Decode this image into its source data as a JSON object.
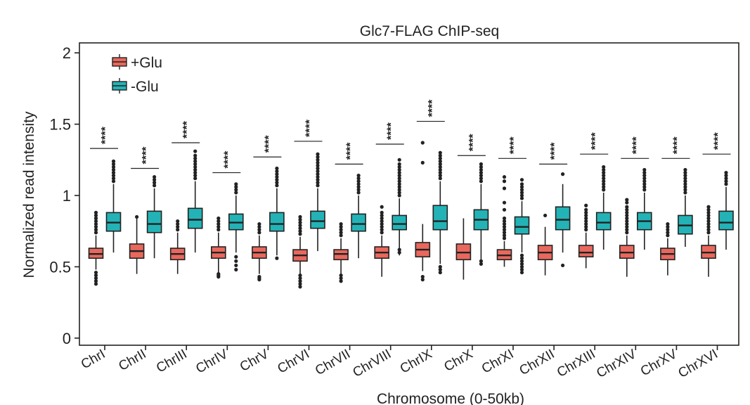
{
  "chart_data": {
    "type": "boxplot",
    "title": "Glc7-FLAG ChIP-seq",
    "xlabel": "Chromosome (0-50kb)",
    "ylabel": "Normalized read intensity",
    "ylim": [
      -0.05,
      2.07
    ],
    "yticks": [
      0,
      0.5,
      1,
      1.5,
      2
    ],
    "ytick_labels": [
      "0",
      "0.5",
      "1",
      "1.5",
      "2"
    ],
    "categories": [
      "ChrI",
      "ChrII",
      "ChrIII",
      "ChrIV",
      "ChrV",
      "ChrVI",
      "ChrVII",
      "ChrVIII",
      "ChrIX",
      "ChrX",
      "ChrXI",
      "ChrXII",
      "ChrXIII",
      "ChrXIV",
      "ChrXV",
      "ChrXVI"
    ],
    "significance_label": "****",
    "significance_y": [
      1.33,
      1.19,
      1.37,
      1.16,
      1.27,
      1.38,
      1.22,
      1.36,
      1.52,
      1.28,
      1.26,
      1.22,
      1.29,
      1.26,
      1.26,
      1.29
    ],
    "legend_position": "top-left",
    "series": [
      {
        "name": "+Glu",
        "color": "#e8685d",
        "boxes": [
          {
            "whislo": 0.48,
            "q1": 0.56,
            "med": 0.59,
            "q3": 0.63,
            "whishi": 0.72,
            "fliers": [
              0.38,
              0.4,
              0.42,
              0.44,
              0.46,
              0.74,
              0.76,
              0.78,
              0.8,
              0.82,
              0.84,
              0.86,
              0.88
            ]
          },
          {
            "whislo": 0.45,
            "q1": 0.56,
            "med": 0.61,
            "q3": 0.66,
            "whishi": 0.84,
            "fliers": [
              0.85
            ]
          },
          {
            "whislo": 0.45,
            "q1": 0.55,
            "med": 0.59,
            "q3": 0.63,
            "whishi": 0.74,
            "fliers": [
              0.76,
              0.78,
              0.8,
              0.82
            ]
          },
          {
            "whislo": 0.46,
            "q1": 0.56,
            "med": 0.6,
            "q3": 0.64,
            "whishi": 0.74,
            "fliers": [
              0.43,
              0.44,
              0.45,
              0.76,
              0.78,
              0.8,
              0.82,
              0.84
            ]
          },
          {
            "whislo": 0.45,
            "q1": 0.56,
            "med": 0.6,
            "q3": 0.64,
            "whishi": 0.72,
            "fliers": [
              0.41,
              0.42,
              0.43,
              0.74,
              0.76,
              0.78,
              0.8
            ]
          },
          {
            "whislo": 0.45,
            "q1": 0.54,
            "med": 0.58,
            "q3": 0.62,
            "whishi": 0.71,
            "fliers": [
              0.36,
              0.38,
              0.4,
              0.42,
              0.44,
              0.73,
              0.75,
              0.77,
              0.79,
              0.81,
              0.83,
              0.85
            ]
          },
          {
            "whislo": 0.45,
            "q1": 0.55,
            "med": 0.59,
            "q3": 0.62,
            "whishi": 0.7,
            "fliers": [
              0.4,
              0.42,
              0.44,
              0.72,
              0.74,
              0.76,
              0.78,
              0.8
            ]
          },
          {
            "whislo": 0.43,
            "q1": 0.56,
            "med": 0.6,
            "q3": 0.64,
            "whishi": 0.72,
            "fliers": [
              0.74,
              0.76,
              0.78,
              0.8,
              0.82,
              0.84,
              0.86,
              0.88,
              0.92
            ]
          },
          {
            "whislo": 0.47,
            "q1": 0.57,
            "med": 0.62,
            "q3": 0.67,
            "whishi": 0.8,
            "fliers": [
              0.41,
              0.43,
              1.23,
              1.37
            ]
          },
          {
            "whislo": 0.41,
            "q1": 0.55,
            "med": 0.6,
            "q3": 0.66,
            "whishi": 0.84,
            "fliers": []
          },
          {
            "whislo": 0.5,
            "q1": 0.55,
            "med": 0.58,
            "q3": 0.62,
            "whishi": 0.68,
            "fliers": [
              0.7,
              0.72,
              0.74,
              0.76,
              0.78,
              0.8,
              0.82,
              0.84,
              0.9,
              0.95,
              1.05,
              1.1,
              1.13
            ]
          },
          {
            "whislo": 0.44,
            "q1": 0.55,
            "med": 0.6,
            "q3": 0.65,
            "whishi": 0.78,
            "fliers": [
              0.86
            ]
          },
          {
            "whislo": 0.49,
            "q1": 0.57,
            "med": 0.6,
            "q3": 0.65,
            "whishi": 0.74,
            "fliers": [
              0.76,
              0.78,
              0.8,
              0.82,
              0.84,
              0.86,
              0.88,
              0.9,
              0.93
            ]
          },
          {
            "whislo": 0.43,
            "q1": 0.56,
            "med": 0.6,
            "q3": 0.65,
            "whishi": 0.72,
            "fliers": [
              0.74,
              0.76,
              0.78,
              0.8,
              0.82,
              0.84,
              0.86,
              0.88,
              0.9,
              0.92,
              0.95,
              0.97
            ]
          },
          {
            "whislo": 0.44,
            "q1": 0.55,
            "med": 0.59,
            "q3": 0.63,
            "whishi": 0.7,
            "fliers": [
              0.72,
              0.74,
              0.76,
              0.78,
              0.8
            ]
          },
          {
            "whislo": 0.43,
            "q1": 0.56,
            "med": 0.6,
            "q3": 0.65,
            "whishi": 0.72,
            "fliers": [
              0.74,
              0.76,
              0.78,
              0.8,
              0.82,
              0.84,
              0.86,
              0.88,
              0.9,
              0.92
            ]
          }
        ]
      },
      {
        "name": "-Glu",
        "color": "#23b3b6",
        "boxes": [
          {
            "whislo": 0.6,
            "q1": 0.75,
            "med": 0.81,
            "q3": 0.88,
            "whishi": 1.08,
            "fliers": [
              1.1,
              1.12,
              1.14,
              1.16,
              1.18,
              1.2,
              1.22,
              1.24
            ]
          },
          {
            "whislo": 0.56,
            "q1": 0.74,
            "med": 0.8,
            "q3": 0.89,
            "whishi": 1.05,
            "fliers": [
              1.07,
              1.09,
              1.11,
              1.13
            ]
          },
          {
            "whislo": 0.6,
            "q1": 0.77,
            "med": 0.83,
            "q3": 0.91,
            "whishi": 1.1,
            "fliers": [
              1.12,
              1.14,
              1.16,
              1.18,
              1.2,
              1.22,
              1.24,
              1.26,
              1.28,
              1.31
            ]
          },
          {
            "whislo": 0.6,
            "q1": 0.76,
            "med": 0.81,
            "q3": 0.87,
            "whishi": 1.0,
            "fliers": [
              0.48,
              0.51,
              0.54,
              0.57,
              1.02,
              1.04,
              1.06,
              1.08
            ]
          },
          {
            "whislo": 0.58,
            "q1": 0.75,
            "med": 0.8,
            "q3": 0.88,
            "whishi": 1.05,
            "fliers": [
              0.56,
              1.07,
              1.09,
              1.11,
              1.13,
              1.15,
              1.17,
              1.19
            ]
          },
          {
            "whislo": 0.61,
            "q1": 0.77,
            "med": 0.82,
            "q3": 0.89,
            "whishi": 1.05,
            "fliers": [
              1.07,
              1.09,
              1.11,
              1.13,
              1.15,
              1.17,
              1.19,
              1.21,
              1.23,
              1.25,
              1.27,
              1.29
            ]
          },
          {
            "whislo": 0.56,
            "q1": 0.75,
            "med": 0.8,
            "q3": 0.87,
            "whishi": 1.0,
            "fliers": [
              1.02,
              1.04,
              1.06,
              1.08,
              1.1,
              1.12,
              1.14
            ]
          },
          {
            "whislo": 0.58,
            "q1": 0.76,
            "med": 0.8,
            "q3": 0.86,
            "whishi": 0.98,
            "fliers": [
              0.6,
              0.62,
              1.0,
              1.02,
              1.04,
              1.06,
              1.08,
              1.1,
              1.12,
              1.14,
              1.16,
              1.18,
              1.2,
              1.22,
              1.25
            ]
          },
          {
            "whislo": 0.52,
            "q1": 0.76,
            "med": 0.82,
            "q3": 0.93,
            "whishi": 1.1,
            "fliers": [
              0.46,
              0.48,
              0.5,
              1.12,
              1.14,
              1.16,
              1.18,
              1.2,
              1.22,
              1.24,
              1.26,
              1.28,
              1.3
            ]
          },
          {
            "whislo": 0.55,
            "q1": 0.76,
            "med": 0.83,
            "q3": 0.9,
            "whishi": 1.08,
            "fliers": [
              0.52,
              0.54,
              1.1,
              1.12,
              1.14,
              1.16,
              1.18,
              1.2,
              1.22
            ]
          },
          {
            "whislo": 0.6,
            "q1": 0.73,
            "med": 0.78,
            "q3": 0.85,
            "whishi": 0.96,
            "fliers": [
              0.46,
              0.48,
              0.5,
              0.52,
              0.54,
              0.56,
              0.58,
              0.98,
              1.0,
              1.02,
              1.04,
              1.06,
              1.08,
              1.11
            ]
          },
          {
            "whislo": 0.6,
            "q1": 0.76,
            "med": 0.83,
            "q3": 0.92,
            "whishi": 1.08,
            "fliers": [
              0.51,
              1.15
            ]
          },
          {
            "whislo": 0.62,
            "q1": 0.76,
            "med": 0.81,
            "q3": 0.88,
            "whishi": 1.02,
            "fliers": [
              1.04,
              1.06,
              1.08,
              1.1,
              1.12,
              1.14,
              1.16,
              1.18,
              1.2
            ]
          },
          {
            "whislo": 0.62,
            "q1": 0.76,
            "med": 0.82,
            "q3": 0.88,
            "whishi": 1.02,
            "fliers": [
              1.04,
              1.06,
              1.08,
              1.1,
              1.12,
              1.14,
              1.16,
              1.18
            ]
          },
          {
            "whislo": 0.64,
            "q1": 0.73,
            "med": 0.79,
            "q3": 0.86,
            "whishi": 1.0,
            "fliers": [
              1.02,
              1.04,
              1.06,
              1.08,
              1.1,
              1.12,
              1.14,
              1.16,
              1.18
            ]
          },
          {
            "whislo": 0.62,
            "q1": 0.76,
            "med": 0.81,
            "q3": 0.89,
            "whishi": 1.06,
            "fliers": [
              1.08,
              1.1,
              1.12,
              1.14,
              1.16
            ]
          }
        ]
      }
    ]
  }
}
